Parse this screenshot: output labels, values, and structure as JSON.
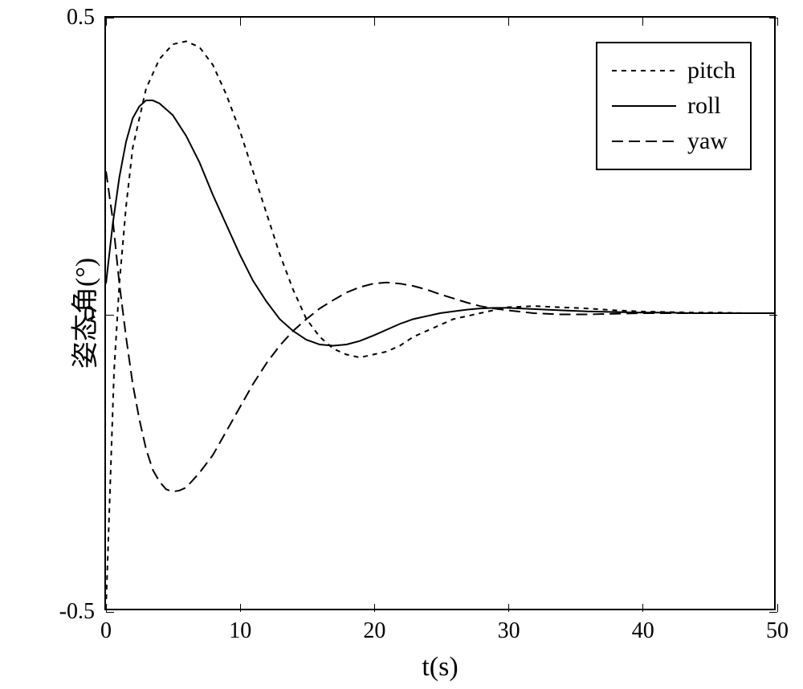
{
  "chart": {
    "type": "line",
    "background_color": "#ffffff",
    "border_color": "#000000",
    "xlabel": "t(s)",
    "ylabel": "姿态角(°)",
    "label_fontsize": 34,
    "tick_fontsize": 28,
    "xlim": [
      0,
      50
    ],
    "ylim": [
      -0.5,
      0.5
    ],
    "xticks": [
      0,
      10,
      20,
      30,
      40,
      50
    ],
    "yticks": [
      -0.5,
      0,
      0.5
    ],
    "xtick_labels": [
      "0",
      "10",
      "20",
      "30",
      "40",
      "50"
    ],
    "ytick_labels": [
      "-0.5",
      "0",
      "0.5"
    ],
    "series": [
      {
        "name": "pitch",
        "dash": "6,6",
        "color": "#000000",
        "width": 2,
        "data": [
          [
            0,
            -0.5
          ],
          [
            0.3,
            -0.3
          ],
          [
            0.6,
            -0.1
          ],
          [
            1,
            0.05
          ],
          [
            1.5,
            0.18
          ],
          [
            2,
            0.28
          ],
          [
            3,
            0.38
          ],
          [
            4,
            0.43
          ],
          [
            5,
            0.455
          ],
          [
            6,
            0.46
          ],
          [
            7,
            0.45
          ],
          [
            8,
            0.42
          ],
          [
            9,
            0.37
          ],
          [
            10,
            0.31
          ],
          [
            11,
            0.24
          ],
          [
            12,
            0.17
          ],
          [
            13,
            0.1
          ],
          [
            14,
            0.04
          ],
          [
            15,
            -0.01
          ],
          [
            16,
            -0.04
          ],
          [
            17,
            -0.06
          ],
          [
            18,
            -0.07
          ],
          [
            19,
            -0.075
          ],
          [
            20,
            -0.07
          ],
          [
            21,
            -0.065
          ],
          [
            22,
            -0.055
          ],
          [
            23,
            -0.04
          ],
          [
            24,
            -0.03
          ],
          [
            25,
            -0.02
          ],
          [
            26,
            -0.01
          ],
          [
            27,
            -0.005
          ],
          [
            28,
            0.0
          ],
          [
            29,
            0.005
          ],
          [
            30,
            0.01
          ],
          [
            32,
            0.012
          ],
          [
            34,
            0.01
          ],
          [
            36,
            0.008
          ],
          [
            38,
            0.005
          ],
          [
            40,
            0.003
          ],
          [
            42,
            0.002
          ],
          [
            44,
            0.001
          ],
          [
            46,
            0.001
          ],
          [
            48,
            0.0
          ],
          [
            50,
            0.0
          ]
        ]
      },
      {
        "name": "roll",
        "dash": "none",
        "color": "#000000",
        "width": 2,
        "data": [
          [
            0,
            0.05
          ],
          [
            0.5,
            0.15
          ],
          [
            1,
            0.23
          ],
          [
            1.5,
            0.29
          ],
          [
            2,
            0.33
          ],
          [
            2.5,
            0.35
          ],
          [
            3,
            0.36
          ],
          [
            3.5,
            0.36
          ],
          [
            4,
            0.355
          ],
          [
            5,
            0.335
          ],
          [
            6,
            0.3
          ],
          [
            7,
            0.255
          ],
          [
            8,
            0.2
          ],
          [
            9,
            0.15
          ],
          [
            10,
            0.1
          ],
          [
            11,
            0.055
          ],
          [
            12,
            0.02
          ],
          [
            13,
            -0.01
          ],
          [
            14,
            -0.03
          ],
          [
            15,
            -0.045
          ],
          [
            16,
            -0.053
          ],
          [
            17,
            -0.055
          ],
          [
            18,
            -0.053
          ],
          [
            19,
            -0.047
          ],
          [
            20,
            -0.038
          ],
          [
            21,
            -0.028
          ],
          [
            22,
            -0.018
          ],
          [
            23,
            -0.01
          ],
          [
            24,
            -0.005
          ],
          [
            25,
            0.0
          ],
          [
            26,
            0.003
          ],
          [
            27,
            0.006
          ],
          [
            28,
            0.008
          ],
          [
            29,
            0.009
          ],
          [
            30,
            0.009
          ],
          [
            32,
            0.007
          ],
          [
            34,
            0.005
          ],
          [
            36,
            0.003
          ],
          [
            38,
            0.002
          ],
          [
            40,
            0.001
          ],
          [
            42,
            0.001
          ],
          [
            44,
            0.0
          ],
          [
            46,
            0.0
          ],
          [
            48,
            0.0
          ],
          [
            50,
            0.0
          ]
        ]
      },
      {
        "name": "yaw",
        "dash": "14,7",
        "color": "#000000",
        "width": 2,
        "data": [
          [
            0,
            0.24
          ],
          [
            0.5,
            0.16
          ],
          [
            1,
            0.05
          ],
          [
            1.5,
            -0.04
          ],
          [
            2,
            -0.12
          ],
          [
            2.5,
            -0.18
          ],
          [
            3,
            -0.23
          ],
          [
            3.5,
            -0.265
          ],
          [
            4,
            -0.285
          ],
          [
            4.5,
            -0.298
          ],
          [
            5,
            -0.302
          ],
          [
            5.5,
            -0.3
          ],
          [
            6,
            -0.295
          ],
          [
            7,
            -0.27
          ],
          [
            8,
            -0.24
          ],
          [
            9,
            -0.2
          ],
          [
            10,
            -0.16
          ],
          [
            11,
            -0.12
          ],
          [
            12,
            -0.085
          ],
          [
            13,
            -0.055
          ],
          [
            14,
            -0.03
          ],
          [
            15,
            -0.01
          ],
          [
            16,
            0.008
          ],
          [
            17,
            0.022
          ],
          [
            18,
            0.035
          ],
          [
            19,
            0.044
          ],
          [
            20,
            0.05
          ],
          [
            21,
            0.052
          ],
          [
            22,
            0.05
          ],
          [
            23,
            0.046
          ],
          [
            24,
            0.04
          ],
          [
            25,
            0.032
          ],
          [
            26,
            0.025
          ],
          [
            27,
            0.018
          ],
          [
            28,
            0.012
          ],
          [
            29,
            0.008
          ],
          [
            30,
            0.005
          ],
          [
            32,
            0.0
          ],
          [
            34,
            -0.002
          ],
          [
            36,
            -0.002
          ],
          [
            38,
            -0.001
          ],
          [
            40,
            0.0
          ],
          [
            42,
            0.0
          ],
          [
            44,
            0.0
          ],
          [
            46,
            0.0
          ],
          [
            48,
            0.0
          ],
          [
            50,
            0.0
          ]
        ]
      }
    ],
    "legend": {
      "position": "top-right",
      "border_color": "#000000",
      "background_color": "#ffffff",
      "entries": [
        "pitch",
        "roll",
        "yaw"
      ]
    }
  }
}
